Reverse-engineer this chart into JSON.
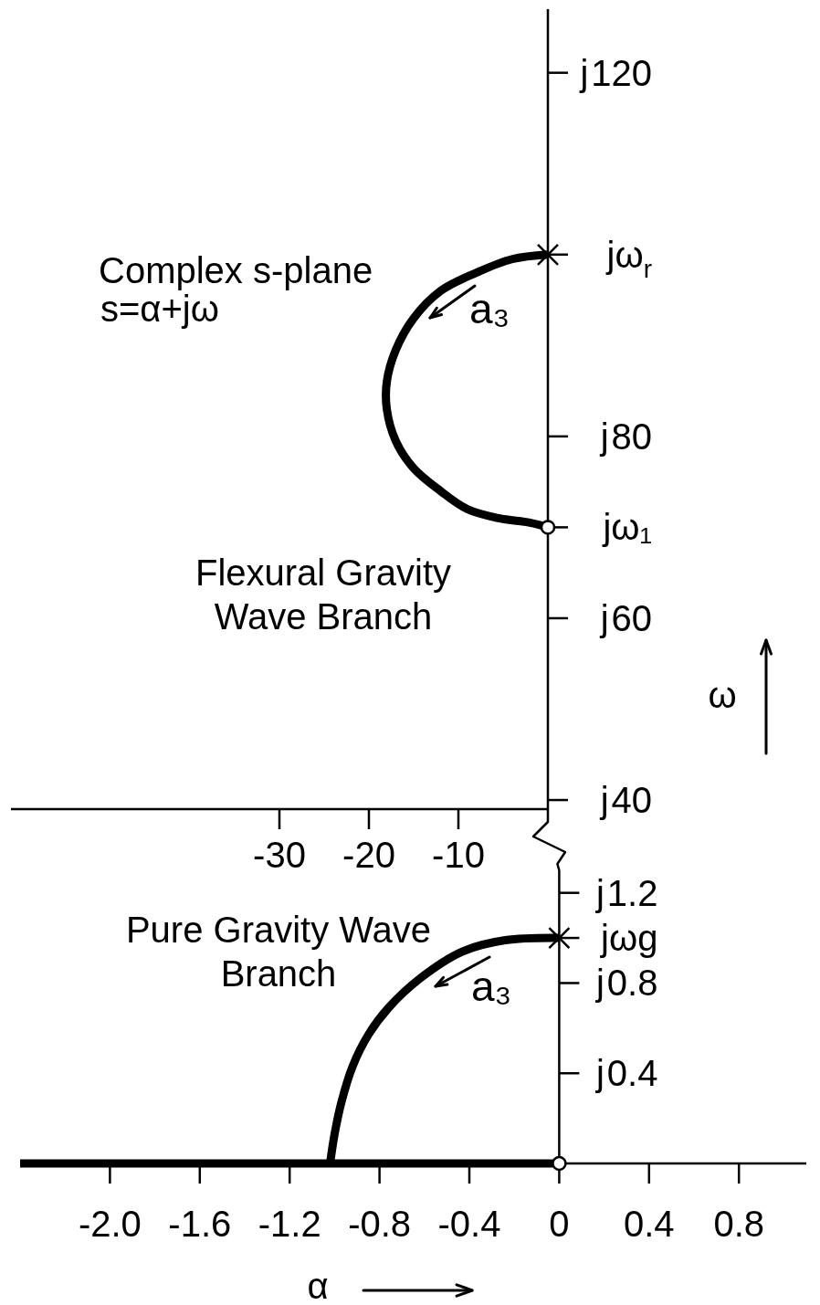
{
  "chart_data": [
    {
      "type": "line",
      "ylabel": "ω",
      "xlim": [
        -60,
        0
      ],
      "xticks": [
        -30,
        -20,
        -10
      ],
      "ylim": [
        39,
        127
      ],
      "yticks": [
        40,
        60,
        {
          "value": 70,
          "label": "jω₁"
        },
        80,
        {
          "value": 100,
          "label": "jω$_{r}$"
        },
        120
      ],
      "annotations": [
        "Complex s-plane",
        "s=α+jω",
        "Flexural Gravity Wave Branch",
        "a₃",
        "j",
        "j",
        "j",
        "j"
      ],
      "series": [
        {
          "color": "#000000",
          "x": [
            0,
            -4,
            -8,
            -12,
            -15,
            -17,
            -18,
            -18,
            -17,
            -15,
            -12,
            -9,
            -5.5,
            -2,
            0
          ],
          "values": [
            100,
            99.5,
            98,
            96,
            93,
            89.5,
            86,
            83,
            79.5,
            76.5,
            74,
            72,
            71,
            70.5,
            70
          ]
        },
        {
          "type": "scatter",
          "marker": "cross",
          "color": "#000000",
          "x": [
            0
          ],
          "values": [
            100
          ]
        },
        {
          "type": "scatter",
          "marker": "circle",
          "color": "#000000",
          "x": [
            0
          ],
          "values": [
            70
          ]
        }
      ]
    },
    {
      "type": "line",
      "xlabel": "α",
      "xlim": [
        -2.4,
        1.1
      ],
      "xticks": [
        {
          "value": -2,
          "label": "-2.0"
        },
        -1.6,
        -1.2,
        -0.8,
        -0.4,
        0,
        0.4,
        0.8
      ],
      "ylim": [
        0,
        1.3
      ],
      "yticks": [
        0.4,
        0.8,
        {
          "value": 1,
          "label": "jωg"
        },
        1.2
      ],
      "annotations": [
        "Pure Gravity Wave Branch",
        "a₃",
        "j",
        "j",
        "j"
      ],
      "series": [
        {
          "color": "#000000",
          "x": [
            -2.4,
            0
          ],
          "values": [
            0,
            0
          ]
        },
        {
          "color": "#000000",
          "x": [
            0,
            -0.24,
            -0.43,
            -0.62,
            -0.76,
            -0.85,
            -0.92,
            -0.97,
            -1.0,
            -1.02
          ],
          "values": [
            1.0,
            0.99,
            0.94,
            0.82,
            0.69,
            0.57,
            0.43,
            0.27,
            0.13,
            0
          ]
        },
        {
          "type": "scatter",
          "marker": "cross",
          "color": "#000000",
          "x": [
            0
          ],
          "values": [
            1.0
          ]
        },
        {
          "type": "scatter",
          "marker": "circle",
          "color": "#000000",
          "x": [
            0
          ],
          "values": [
            0
          ]
        }
      ]
    }
  ]
}
